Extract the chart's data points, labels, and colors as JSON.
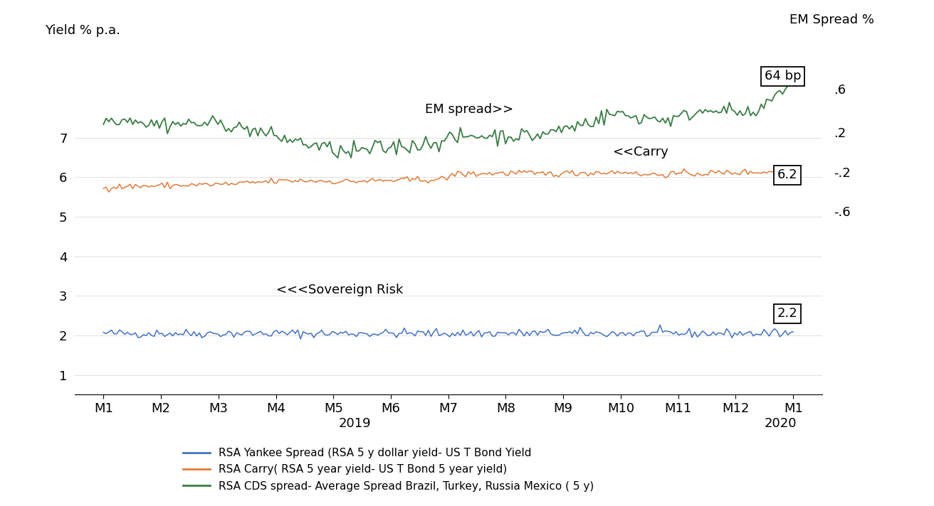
{
  "title_left": "Yield % p.a.",
  "title_right": "EM Spread %",
  "x_labels": [
    "M1",
    "M2",
    "M3",
    "M4",
    "M5",
    "M6",
    "M7",
    "M8",
    "M9",
    "M10",
    "M11",
    "M12",
    "M1"
  ],
  "blue_color": "#4472c4",
  "orange_color": "#e07b39",
  "green_color": "#3a7d44",
  "yticks": [
    1,
    2,
    3,
    4,
    5,
    6,
    7
  ],
  "ylim_low": 0.5,
  "ylim_high": 9.2,
  "annotation_em_spread": "EM spread>>",
  "annotation_carry": "<<Carry",
  "annotation_sov": "<<<Sovereign Risk",
  "legend": [
    {
      "label": "RSA Yankee Spread (RSA 5 y dollar yield- US T Bond Yield",
      "color": "#4472c4"
    },
    {
      "label": "RSA Carry( RSA 5 year yield- US T Bond 5 year yield)",
      "color": "#e07b39"
    },
    {
      "label": "RSA CDS spread- Average Spread Brazil, Turkey, Russia Mexico ( 5 y)",
      "color": "#3a7d44"
    }
  ],
  "background_color": "#ffffff"
}
